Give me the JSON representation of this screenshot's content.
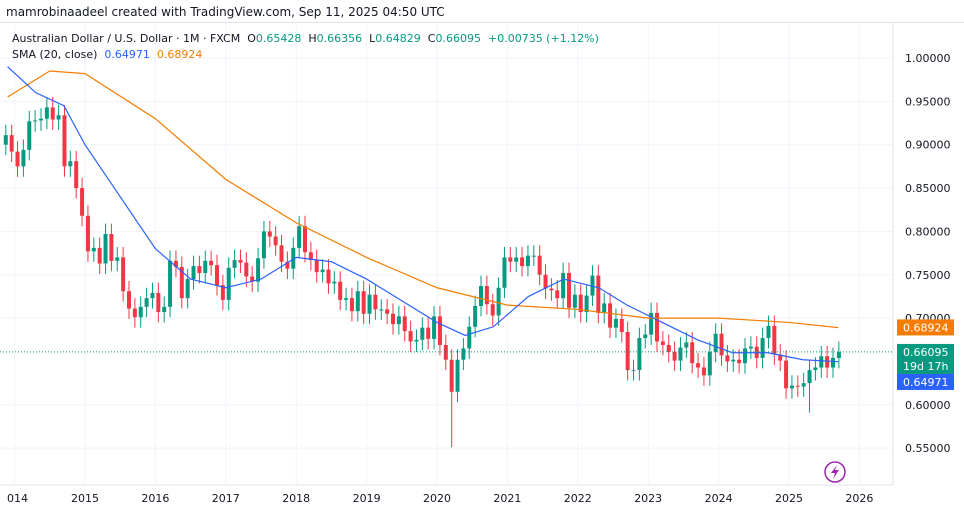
{
  "header": {
    "credit": "mamrobinaadeel created with TradingView.com, Sep 11, 2025 04:50 UTC"
  },
  "legend": {
    "symbol": "Australian Dollar / U.S. Dollar · 1M · FXCM",
    "o_label": "O",
    "o": "0.65428",
    "h_label": "H",
    "h": "0.66356",
    "l_label": "L",
    "l": "0.64829",
    "c_label": "C",
    "c": "0.66095",
    "change": "+0.00735 (+1.12%)",
    "sma_label": "SMA (20, close)",
    "sma_value": "0.64971",
    "sma2_value": "0.68924"
  },
  "chart_data": {
    "type": "candlestick",
    "start_month": "2013-11",
    "interval": "1M",
    "closes": [
      0.911,
      0.892,
      0.875,
      0.894,
      0.927,
      0.928,
      0.93,
      0.943,
      0.929,
      0.934,
      0.875,
      0.881,
      0.85,
      0.818,
      0.777,
      0.781,
      0.763,
      0.797,
      0.766,
      0.77,
      0.731,
      0.711,
      0.701,
      0.713,
      0.723,
      0.729,
      0.707,
      0.713,
      0.766,
      0.759,
      0.723,
      0.745,
      0.76,
      0.752,
      0.766,
      0.761,
      0.738,
      0.721,
      0.758,
      0.767,
      0.764,
      0.748,
      0.742,
      0.769,
      0.8,
      0.794,
      0.784,
      0.765,
      0.757,
      0.781,
      0.806,
      0.776,
      0.767,
      0.753,
      0.756,
      0.74,
      0.742,
      0.721,
      0.723,
      0.708,
      0.731,
      0.705,
      0.727,
      0.71,
      0.71,
      0.705,
      0.693,
      0.702,
      0.685,
      0.673,
      0.675,
      0.689,
      0.676,
      0.702,
      0.669,
      0.652,
      0.615,
      0.652,
      0.665,
      0.69,
      0.714,
      0.737,
      0.716,
      0.703,
      0.735,
      0.77,
      0.765,
      0.77,
      0.76,
      0.772,
      0.772,
      0.75,
      0.734,
      0.732,
      0.723,
      0.752,
      0.712,
      0.727,
      0.707,
      0.726,
      0.749,
      0.706,
      0.717,
      0.689,
      0.699,
      0.684,
      0.64,
      0.64,
      0.677,
      0.681,
      0.706,
      0.673,
      0.669,
      0.661,
      0.651,
      0.666,
      0.672,
      0.648,
      0.643,
      0.634,
      0.661,
      0.682,
      0.657,
      0.65,
      0.652,
      0.648,
      0.665,
      0.667,
      0.654,
      0.677,
      0.691,
      0.658,
      0.651,
      0.619,
      0.622,
      0.621,
      0.625,
      0.64,
      0.643,
      0.656,
      0.643,
      0.654,
      0.661
    ],
    "first_open": 0.9,
    "notable_lows": {
      "2020-03": 0.551,
      "2025-04": 0.591
    },
    "sma20": [
      [
        2013.9,
        0.99
      ],
      [
        2014.3,
        0.96
      ],
      [
        2014.7,
        0.945
      ],
      [
        2015,
        0.9
      ],
      [
        2015.5,
        0.84
      ],
      [
        2016,
        0.78
      ],
      [
        2016.5,
        0.745
      ],
      [
        2017,
        0.735
      ],
      [
        2017.5,
        0.745
      ],
      [
        2018,
        0.77
      ],
      [
        2018.5,
        0.765
      ],
      [
        2019,
        0.745
      ],
      [
        2019.5,
        0.72
      ],
      [
        2020,
        0.695
      ],
      [
        2020.4,
        0.68
      ],
      [
        2020.8,
        0.69
      ],
      [
        2021.3,
        0.725
      ],
      [
        2021.8,
        0.745
      ],
      [
        2022.3,
        0.735
      ],
      [
        2022.7,
        0.715
      ],
      [
        2023.2,
        0.695
      ],
      [
        2023.7,
        0.675
      ],
      [
        2024.2,
        0.66
      ],
      [
        2024.7,
        0.66
      ],
      [
        2025.2,
        0.652
      ],
      [
        2025.7,
        0.6497
      ]
    ],
    "sma_long": [
      [
        2013.9,
        0.955
      ],
      [
        2014.5,
        0.985
      ],
      [
        2015,
        0.982
      ],
      [
        2016,
        0.93
      ],
      [
        2017,
        0.86
      ],
      [
        2018,
        0.81
      ],
      [
        2019,
        0.77
      ],
      [
        2020,
        0.735
      ],
      [
        2021,
        0.715
      ],
      [
        2022,
        0.71
      ],
      [
        2023,
        0.7
      ],
      [
        2024,
        0.7
      ],
      [
        2025,
        0.695
      ],
      [
        2025.7,
        0.689
      ]
    ],
    "y_ticks": [
      "1.00000",
      "0.95000",
      "0.90000",
      "0.85000",
      "0.80000",
      "0.75000",
      "0.70000",
      "0.60000",
      "0.55000"
    ],
    "x_ticks": [
      "014",
      "2015",
      "2016",
      "2017",
      "2018",
      "2019",
      "2020",
      "2021",
      "2022",
      "2023",
      "2024",
      "2025",
      "2026"
    ],
    "price_tags": {
      "sma_long": "0.68924",
      "last": "0.66095",
      "countdown": "19d 17h",
      "sma20": "0.64971"
    },
    "colors": {
      "up": "#089981",
      "down": "#f23645",
      "sma20": "#2962ff",
      "sma_long": "#f57c00"
    }
  }
}
